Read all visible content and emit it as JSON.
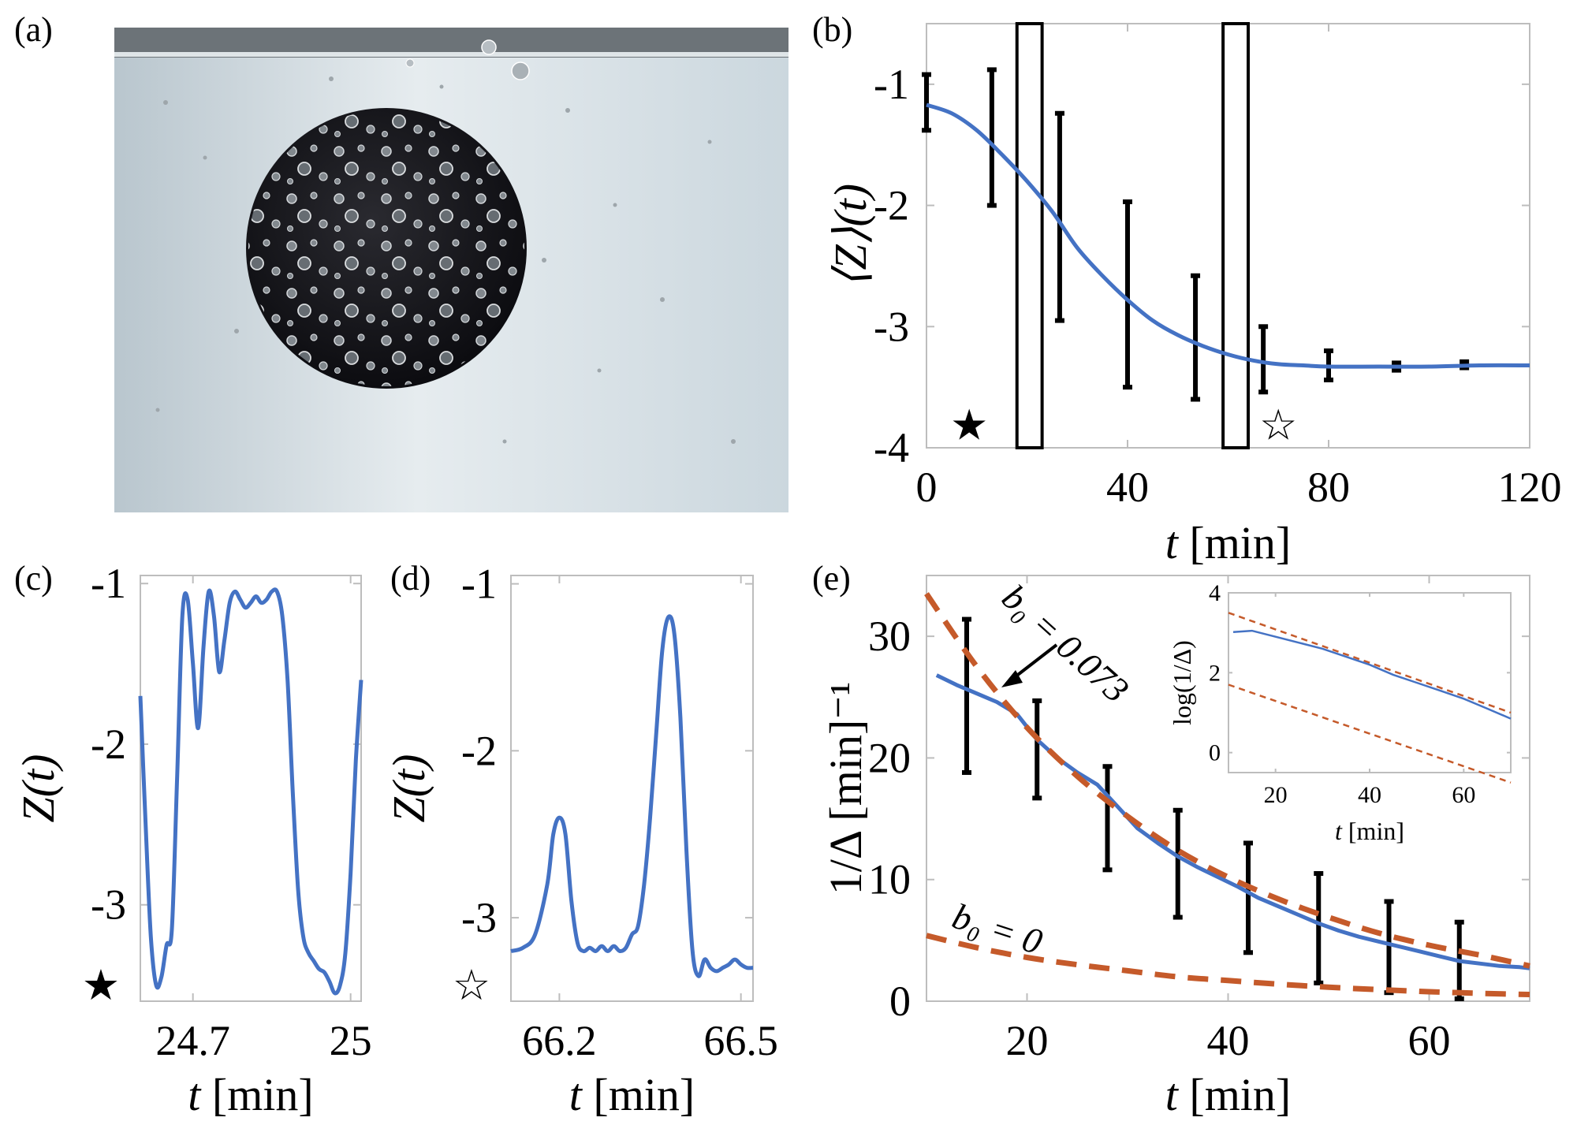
{
  "panels": {
    "a": {
      "label": "(a)"
    },
    "b": {
      "label": "(b)"
    },
    "c": {
      "label": "(c)"
    },
    "d": {
      "label": "(d)"
    },
    "e": {
      "label": "(e)"
    }
  },
  "chart_data": [
    {
      "id": "b",
      "type": "line",
      "xlabel_var": "t",
      "xlabel_unit": "[min]",
      "ylabel": "⟨Z⟩(t)",
      "xlim": [
        0,
        120
      ],
      "ylim": [
        -4,
        -0.5
      ],
      "xticks": [
        0,
        40,
        80,
        120
      ],
      "yticks": [
        -1,
        -2,
        -3,
        -4
      ],
      "tick_labels_x": [
        "0",
        "40",
        "80",
        "120"
      ],
      "tick_labels_y": [
        "-1",
        "-2",
        "-3",
        "-4"
      ],
      "series": [
        {
          "x": [
            0,
            5,
            10,
            15,
            20,
            25,
            30,
            35,
            40,
            45,
            50,
            55,
            60,
            65,
            70,
            75,
            80,
            90,
            100,
            110,
            120
          ],
          "y": [
            -1.17,
            -1.24,
            -1.38,
            -1.58,
            -1.8,
            -2.05,
            -2.35,
            -2.58,
            -2.78,
            -2.95,
            -3.07,
            -3.16,
            -3.23,
            -3.28,
            -3.31,
            -3.32,
            -3.33,
            -3.33,
            -3.33,
            -3.32,
            -3.32
          ]
        }
      ],
      "error_bars": [
        {
          "x": 0,
          "low": -1.38,
          "high": -0.92
        },
        {
          "x": 13,
          "low": -2.0,
          "high": -0.88
        },
        {
          "x": 26.5,
          "low": -2.95,
          "high": -1.24
        },
        {
          "x": 40,
          "low": -3.5,
          "high": -1.97
        },
        {
          "x": 53.5,
          "low": -3.6,
          "high": -2.58
        },
        {
          "x": 67,
          "low": -3.54,
          "high": -3.0
        },
        {
          "x": 80,
          "low": -3.44,
          "high": -3.2
        },
        {
          "x": 93.5,
          "low": -3.36,
          "high": -3.3
        },
        {
          "x": 107,
          "low": -3.34,
          "high": -3.29
        }
      ],
      "windows": [
        {
          "x0": 18,
          "x1": 23,
          "marker": "★"
        },
        {
          "x0": 59,
          "x1": 64,
          "marker": "☆"
        }
      ],
      "markers": [
        {
          "symbol": "★",
          "x": 8.5,
          "y": -3.75
        },
        {
          "symbol": "☆",
          "x": 70,
          "y": -3.75
        }
      ]
    },
    {
      "id": "c",
      "type": "line",
      "xlabel_var": "t",
      "xlabel_unit": "[min]",
      "ylabel": "Z(t)",
      "xlim": [
        24.6,
        25.02
      ],
      "ylim": [
        -3.6,
        -0.95
      ],
      "xticks": [
        24.7,
        25
      ],
      "yticks": [
        -1,
        -2,
        -3
      ],
      "tick_labels_x": [
        "24.7",
        "25"
      ],
      "tick_labels_y": [
        "-1",
        "-2",
        "-3"
      ],
      "marker": "★",
      "series": [
        {
          "x": [
            24.6,
            24.61,
            24.62,
            24.63,
            24.64,
            24.65,
            24.66,
            24.67,
            24.68,
            24.69,
            24.7,
            24.71,
            24.72,
            24.73,
            24.74,
            24.75,
            24.76,
            24.77,
            24.78,
            24.79,
            24.8,
            24.81,
            24.82,
            24.83,
            24.84,
            24.85,
            24.86,
            24.87,
            24.88,
            24.89,
            24.9,
            24.91,
            24.92,
            24.93,
            24.94,
            24.95,
            24.96,
            24.97,
            24.98,
            24.99,
            25.0,
            25.01,
            25.02
          ],
          "y": [
            -1.7,
            -2.5,
            -3.2,
            -3.5,
            -3.45,
            -3.25,
            -3.15,
            -2.2,
            -1.2,
            -1.1,
            -1.5,
            -1.9,
            -1.4,
            -1.05,
            -1.2,
            -1.55,
            -1.35,
            -1.12,
            -1.05,
            -1.1,
            -1.15,
            -1.12,
            -1.08,
            -1.12,
            -1.1,
            -1.05,
            -1.05,
            -1.2,
            -1.6,
            -2.3,
            -2.9,
            -3.2,
            -3.3,
            -3.35,
            -3.4,
            -3.42,
            -3.48,
            -3.55,
            -3.5,
            -3.3,
            -2.8,
            -2.1,
            -1.6
          ]
        }
      ]
    },
    {
      "id": "d",
      "type": "line",
      "xlabel_var": "t",
      "xlabel_unit": "[min]",
      "ylabel": "Z(t)",
      "xlim": [
        66.12,
        66.52
      ],
      "ylim": [
        -3.5,
        -0.95
      ],
      "xticks": [
        66.2,
        66.5
      ],
      "yticks": [
        -1,
        -2,
        -3
      ],
      "tick_labels_x": [
        "66.2",
        "66.5"
      ],
      "tick_labels_y": [
        "-1",
        "-2",
        "-3"
      ],
      "marker": "☆",
      "series": [
        {
          "x": [
            66.12,
            66.14,
            66.16,
            66.18,
            66.19,
            66.2,
            66.21,
            66.22,
            66.23,
            66.24,
            66.25,
            66.26,
            66.27,
            66.28,
            66.29,
            66.3,
            66.31,
            66.32,
            66.33,
            66.34,
            66.35,
            66.36,
            66.37,
            66.38,
            66.39,
            66.4,
            66.41,
            66.42,
            66.43,
            66.44,
            66.45,
            66.46,
            66.47,
            66.48,
            66.49,
            66.5,
            66.51,
            66.52
          ],
          "y": [
            -3.2,
            -3.18,
            -3.1,
            -2.8,
            -2.5,
            -2.4,
            -2.5,
            -2.9,
            -3.15,
            -3.2,
            -3.18,
            -3.2,
            -3.17,
            -3.2,
            -3.17,
            -3.2,
            -3.18,
            -3.1,
            -3.05,
            -2.8,
            -2.4,
            -1.9,
            -1.4,
            -1.2,
            -1.3,
            -1.8,
            -2.6,
            -3.2,
            -3.35,
            -3.25,
            -3.3,
            -3.32,
            -3.3,
            -3.28,
            -3.25,
            -3.28,
            -3.3,
            -3.3
          ]
        }
      ]
    },
    {
      "id": "e",
      "type": "line",
      "xlabel_var": "t",
      "xlabel_unit": "[min]",
      "ylabel": "1/Δ [min]⁻¹",
      "xlim": [
        10,
        70
      ],
      "ylim": [
        0,
        35
      ],
      "xticks": [
        20,
        40,
        60
      ],
      "yticks": [
        0,
        10,
        20,
        30
      ],
      "tick_labels_x": [
        "20",
        "40",
        "60"
      ],
      "tick_labels_y": [
        "0",
        "10",
        "20",
        "30"
      ],
      "series": [
        {
          "x": [
            11,
            13,
            15,
            17,
            19,
            21,
            23,
            25,
            27,
            29,
            31,
            33,
            35,
            37,
            39,
            41,
            43,
            45,
            47,
            49,
            51,
            53,
            55,
            57,
            59,
            61,
            63,
            65,
            67,
            69,
            70
          ],
          "y": [
            26.8,
            26.0,
            25.3,
            24.6,
            23.6,
            21.5,
            20.0,
            18.8,
            17.8,
            16.0,
            14.2,
            13.0,
            11.9,
            11.0,
            10.2,
            9.4,
            8.5,
            7.8,
            7.1,
            6.4,
            5.8,
            5.3,
            4.9,
            4.5,
            4.1,
            3.7,
            3.3,
            3.1,
            2.9,
            2.8,
            2.7
          ]
        }
      ],
      "fits": [
        {
          "label": "b₀ = 0.073",
          "x": [
            10,
            15,
            20,
            25,
            30,
            35,
            40,
            45,
            50,
            55,
            60,
            65,
            70
          ],
          "y": [
            33.5,
            27.5,
            22.5,
            18.5,
            15.2,
            12.4,
            10.2,
            8.4,
            6.9,
            5.6,
            4.6,
            3.8,
            2.9
          ]
        },
        {
          "label": "b₀ = 0",
          "x": [
            10,
            15,
            20,
            25,
            30,
            35,
            40,
            45,
            50,
            55,
            60,
            65,
            70
          ],
          "y": [
            5.4,
            4.4,
            3.6,
            3.0,
            2.5,
            2.0,
            1.7,
            1.4,
            1.15,
            0.95,
            0.78,
            0.65,
            0.55
          ]
        }
      ],
      "error_bars": [
        {
          "x": 14,
          "low": 18.8,
          "high": 31.4
        },
        {
          "x": 21,
          "low": 16.7,
          "high": 24.7
        },
        {
          "x": 28,
          "low": 10.8,
          "high": 19.3
        },
        {
          "x": 35,
          "low": 6.9,
          "high": 15.7
        },
        {
          "x": 42,
          "low": 4.0,
          "high": 13.0
        },
        {
          "x": 49,
          "low": 1.5,
          "high": 10.5
        },
        {
          "x": 56,
          "low": 0.7,
          "high": 8.2
        },
        {
          "x": 63,
          "low": 0.2,
          "high": 6.5
        }
      ],
      "inset": {
        "xlabel_var": "t",
        "xlabel_unit": "[min]",
        "ylabel": "log(1/Δ)",
        "xlim": [
          10,
          70
        ],
        "ylim": [
          -0.5,
          4
        ],
        "xticks": [
          20,
          40,
          60
        ],
        "yticks": [
          0,
          2,
          4
        ],
        "tick_labels_x": [
          "20",
          "40",
          "60"
        ],
        "tick_labels_y": [
          "0",
          "2",
          "4"
        ],
        "series": [
          {
            "x": [
              11,
              15,
              20,
              25,
              30,
              35,
              40,
              45,
              50,
              55,
              60,
              65,
              70
            ],
            "y": [
              3.02,
              3.05,
              2.9,
              2.75,
              2.6,
              2.4,
              2.2,
              1.95,
              1.75,
              1.55,
              1.35,
              1.1,
              0.85
            ]
          }
        ],
        "fits": [
          {
            "x": [
              10,
              70
            ],
            "y": [
              3.5,
              1.0
            ]
          },
          {
            "x": [
              10,
              70
            ],
            "y": [
              1.7,
              -0.75
            ]
          }
        ]
      }
    }
  ]
}
